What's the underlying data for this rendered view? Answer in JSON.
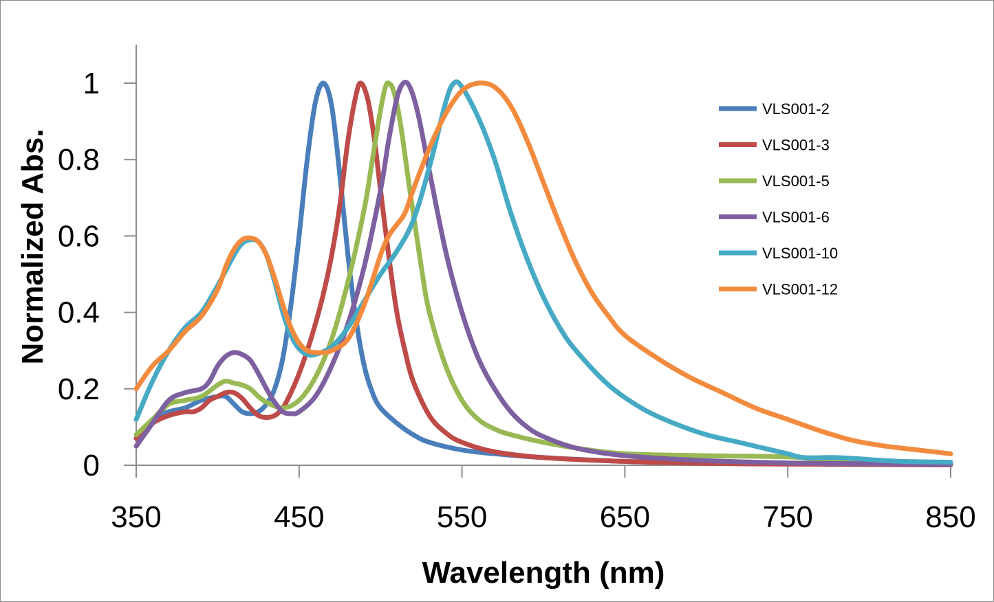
{
  "chart_data": {
    "type": "line",
    "title": "",
    "xlabel": "Wavelength (nm)",
    "ylabel": "Normalized Abs.",
    "xlim": [
      350,
      850
    ],
    "ylim": [
      0,
      1.05
    ],
    "xticks": [
      350,
      450,
      550,
      650,
      750,
      850
    ],
    "xtick_labels": [
      "350",
      "450",
      "550",
      "650",
      "750",
      "850"
    ],
    "yticks": [
      0,
      0.2,
      0.4,
      0.6,
      0.8,
      1
    ],
    "ytick_labels": [
      "0",
      "0.2",
      "0.4",
      "0.6",
      "0.8",
      "1"
    ],
    "grid": false,
    "legend_position": "top-right",
    "series": [
      {
        "name": "VLS001-2",
        "color": "#4a7ebb",
        "points": [
          [
            350,
            0.07
          ],
          [
            360,
            0.12
          ],
          [
            370,
            0.14
          ],
          [
            380,
            0.15
          ],
          [
            390,
            0.17
          ],
          [
            400,
            0.18
          ],
          [
            405,
            0.18
          ],
          [
            410,
            0.16
          ],
          [
            415,
            0.14
          ],
          [
            420,
            0.135
          ],
          [
            425,
            0.14
          ],
          [
            430,
            0.16
          ],
          [
            435,
            0.2
          ],
          [
            440,
            0.28
          ],
          [
            445,
            0.42
          ],
          [
            450,
            0.6
          ],
          [
            455,
            0.8
          ],
          [
            460,
            0.95
          ],
          [
            465,
            1.0
          ],
          [
            470,
            0.94
          ],
          [
            475,
            0.76
          ],
          [
            480,
            0.55
          ],
          [
            485,
            0.38
          ],
          [
            490,
            0.26
          ],
          [
            495,
            0.19
          ],
          [
            500,
            0.15
          ],
          [
            510,
            0.11
          ],
          [
            520,
            0.08
          ],
          [
            530,
            0.06
          ],
          [
            550,
            0.04
          ],
          [
            570,
            0.03
          ],
          [
            600,
            0.02
          ],
          [
            650,
            0.01
          ],
          [
            700,
            0.006
          ],
          [
            750,
            0.003
          ],
          [
            800,
            0.002
          ],
          [
            850,
            0.001
          ]
        ]
      },
      {
        "name": "VLS001-3",
        "color": "#be4b48",
        "points": [
          [
            350,
            0.07
          ],
          [
            360,
            0.11
          ],
          [
            370,
            0.13
          ],
          [
            380,
            0.14
          ],
          [
            385,
            0.14
          ],
          [
            390,
            0.15
          ],
          [
            395,
            0.17
          ],
          [
            400,
            0.18
          ],
          [
            405,
            0.19
          ],
          [
            410,
            0.19
          ],
          [
            415,
            0.175
          ],
          [
            420,
            0.15
          ],
          [
            425,
            0.13
          ],
          [
            430,
            0.125
          ],
          [
            435,
            0.13
          ],
          [
            440,
            0.15
          ],
          [
            445,
            0.19
          ],
          [
            450,
            0.24
          ],
          [
            455,
            0.3
          ],
          [
            460,
            0.37
          ],
          [
            465,
            0.45
          ],
          [
            470,
            0.55
          ],
          [
            475,
            0.68
          ],
          [
            480,
            0.85
          ],
          [
            485,
            0.97
          ],
          [
            488,
            1.0
          ],
          [
            492,
            0.96
          ],
          [
            496,
            0.86
          ],
          [
            500,
            0.72
          ],
          [
            505,
            0.55
          ],
          [
            510,
            0.4
          ],
          [
            515,
            0.3
          ],
          [
            520,
            0.22
          ],
          [
            530,
            0.13
          ],
          [
            540,
            0.085
          ],
          [
            550,
            0.06
          ],
          [
            570,
            0.035
          ],
          [
            600,
            0.02
          ],
          [
            650,
            0.01
          ],
          [
            700,
            0.005
          ],
          [
            750,
            0.003
          ],
          [
            800,
            0.002
          ],
          [
            850,
            0.001
          ]
        ]
      },
      {
        "name": "VLS001-5",
        "color": "#98b954",
        "points": [
          [
            350,
            0.08
          ],
          [
            360,
            0.12
          ],
          [
            370,
            0.16
          ],
          [
            380,
            0.17
          ],
          [
            390,
            0.18
          ],
          [
            400,
            0.21
          ],
          [
            405,
            0.22
          ],
          [
            410,
            0.215
          ],
          [
            415,
            0.21
          ],
          [
            420,
            0.2
          ],
          [
            425,
            0.18
          ],
          [
            430,
            0.165
          ],
          [
            440,
            0.15
          ],
          [
            450,
            0.17
          ],
          [
            460,
            0.23
          ],
          [
            470,
            0.33
          ],
          [
            480,
            0.48
          ],
          [
            490,
            0.67
          ],
          [
            495,
            0.8
          ],
          [
            500,
            0.93
          ],
          [
            503,
            0.99
          ],
          [
            505,
            1.0
          ],
          [
            508,
            0.98
          ],
          [
            512,
            0.9
          ],
          [
            518,
            0.72
          ],
          [
            525,
            0.52
          ],
          [
            530,
            0.4
          ],
          [
            540,
            0.26
          ],
          [
            550,
            0.17
          ],
          [
            560,
            0.12
          ],
          [
            570,
            0.095
          ],
          [
            580,
            0.08
          ],
          [
            600,
            0.06
          ],
          [
            620,
            0.045
          ],
          [
            650,
            0.03
          ],
          [
            700,
            0.025
          ],
          [
            750,
            0.022
          ],
          [
            770,
            0.015
          ],
          [
            790,
            0.012
          ],
          [
            820,
            0.006
          ],
          [
            850,
            0.003
          ]
        ]
      },
      {
        "name": "VLS001-6",
        "color": "#7d60a0",
        "points": [
          [
            350,
            0.05
          ],
          [
            360,
            0.11
          ],
          [
            370,
            0.17
          ],
          [
            380,
            0.19
          ],
          [
            390,
            0.2
          ],
          [
            395,
            0.22
          ],
          [
            400,
            0.26
          ],
          [
            405,
            0.285
          ],
          [
            410,
            0.295
          ],
          [
            415,
            0.29
          ],
          [
            420,
            0.275
          ],
          [
            425,
            0.24
          ],
          [
            430,
            0.2
          ],
          [
            435,
            0.165
          ],
          [
            440,
            0.14
          ],
          [
            445,
            0.135
          ],
          [
            450,
            0.14
          ],
          [
            460,
            0.18
          ],
          [
            470,
            0.26
          ],
          [
            480,
            0.37
          ],
          [
            490,
            0.52
          ],
          [
            500,
            0.72
          ],
          [
            505,
            0.85
          ],
          [
            510,
            0.96
          ],
          [
            514,
            1.0
          ],
          [
            518,
            0.99
          ],
          [
            523,
            0.92
          ],
          [
            530,
            0.77
          ],
          [
            540,
            0.56
          ],
          [
            550,
            0.4
          ],
          [
            560,
            0.28
          ],
          [
            570,
            0.2
          ],
          [
            580,
            0.14
          ],
          [
            590,
            0.1
          ],
          [
            600,
            0.075
          ],
          [
            620,
            0.045
          ],
          [
            650,
            0.025
          ],
          [
            700,
            0.012
          ],
          [
            750,
            0.006
          ],
          [
            800,
            0.004
          ],
          [
            850,
            0.002
          ]
        ]
      },
      {
        "name": "VLS001-10",
        "color": "#46aac5",
        "points": [
          [
            350,
            0.12
          ],
          [
            360,
            0.22
          ],
          [
            370,
            0.3
          ],
          [
            380,
            0.36
          ],
          [
            390,
            0.4
          ],
          [
            400,
            0.47
          ],
          [
            410,
            0.55
          ],
          [
            415,
            0.58
          ],
          [
            420,
            0.59
          ],
          [
            425,
            0.585
          ],
          [
            430,
            0.55
          ],
          [
            435,
            0.48
          ],
          [
            440,
            0.4
          ],
          [
            445,
            0.34
          ],
          [
            450,
            0.305
          ],
          [
            455,
            0.29
          ],
          [
            460,
            0.29
          ],
          [
            470,
            0.31
          ],
          [
            480,
            0.36
          ],
          [
            490,
            0.43
          ],
          [
            500,
            0.5
          ],
          [
            510,
            0.56
          ],
          [
            520,
            0.64
          ],
          [
            530,
            0.78
          ],
          [
            540,
            0.95
          ],
          [
            545,
            1.0
          ],
          [
            550,
            0.99
          ],
          [
            560,
            0.91
          ],
          [
            570,
            0.8
          ],
          [
            580,
            0.66
          ],
          [
            590,
            0.54
          ],
          [
            600,
            0.44
          ],
          [
            610,
            0.36
          ],
          [
            620,
            0.3
          ],
          [
            640,
            0.21
          ],
          [
            660,
            0.15
          ],
          [
            680,
            0.11
          ],
          [
            700,
            0.08
          ],
          [
            720,
            0.06
          ],
          [
            740,
            0.04
          ],
          [
            750,
            0.03
          ],
          [
            760,
            0.02
          ],
          [
            780,
            0.02
          ],
          [
            800,
            0.015
          ],
          [
            820,
            0.01
          ],
          [
            850,
            0.008
          ]
        ]
      },
      {
        "name": "VLS001-12",
        "color": "#f38b3f",
        "points": [
          [
            350,
            0.2
          ],
          [
            360,
            0.26
          ],
          [
            370,
            0.3
          ],
          [
            380,
            0.35
          ],
          [
            390,
            0.39
          ],
          [
            400,
            0.46
          ],
          [
            405,
            0.52
          ],
          [
            410,
            0.565
          ],
          [
            415,
            0.59
          ],
          [
            420,
            0.595
          ],
          [
            425,
            0.585
          ],
          [
            430,
            0.55
          ],
          [
            435,
            0.49
          ],
          [
            440,
            0.42
          ],
          [
            445,
            0.36
          ],
          [
            450,
            0.32
          ],
          [
            455,
            0.3
          ],
          [
            460,
            0.295
          ],
          [
            465,
            0.295
          ],
          [
            470,
            0.3
          ],
          [
            480,
            0.33
          ],
          [
            490,
            0.42
          ],
          [
            500,
            0.55
          ],
          [
            505,
            0.6
          ],
          [
            510,
            0.63
          ],
          [
            515,
            0.66
          ],
          [
            520,
            0.72
          ],
          [
            530,
            0.83
          ],
          [
            540,
            0.92
          ],
          [
            550,
            0.98
          ],
          [
            560,
            1.0
          ],
          [
            570,
            0.99
          ],
          [
            580,
            0.94
          ],
          [
            590,
            0.85
          ],
          [
            600,
            0.74
          ],
          [
            610,
            0.63
          ],
          [
            620,
            0.53
          ],
          [
            630,
            0.45
          ],
          [
            640,
            0.39
          ],
          [
            650,
            0.34
          ],
          [
            670,
            0.28
          ],
          [
            690,
            0.23
          ],
          [
            710,
            0.19
          ],
          [
            730,
            0.15
          ],
          [
            750,
            0.12
          ],
          [
            770,
            0.09
          ],
          [
            790,
            0.065
          ],
          [
            810,
            0.05
          ],
          [
            830,
            0.04
          ],
          [
            850,
            0.03
          ]
        ]
      }
    ]
  }
}
